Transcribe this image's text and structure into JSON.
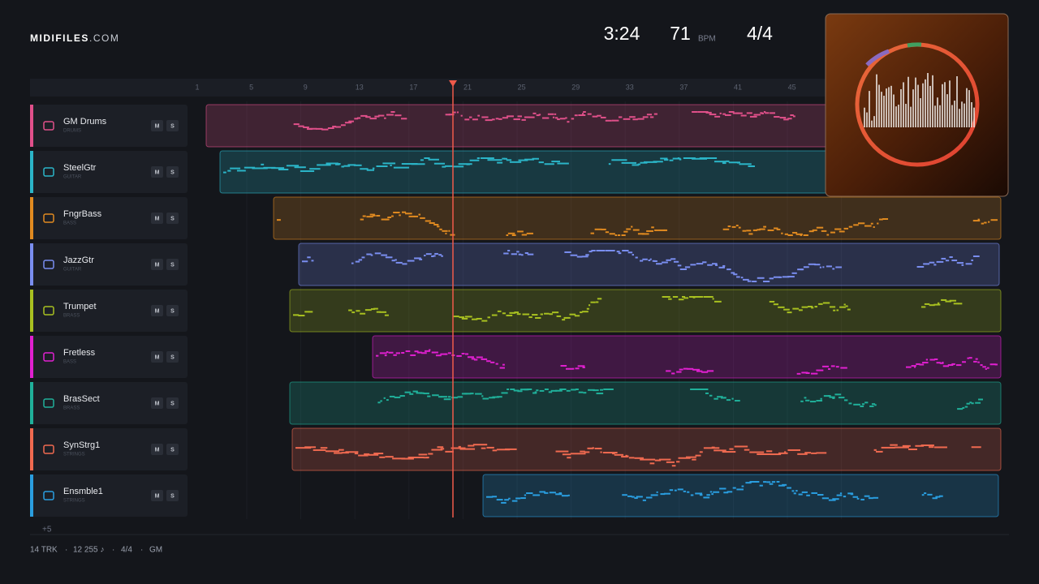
{
  "header": {
    "brand": "MIDIFILES",
    "domain": ".COM",
    "time": "3:24",
    "tempo": "71",
    "tempo_unit": "BPM",
    "meter": "4/4"
  },
  "ruler": [
    "1",
    "5",
    "9",
    "13",
    "17",
    "21",
    "25",
    "29",
    "33",
    "37",
    "41",
    "45"
  ],
  "tracks": [
    {
      "name": "GM Drums",
      "category": "DRUMS",
      "color": "#e0508a",
      "mute": "M",
      "solo": "S"
    },
    {
      "name": "SteelGtr",
      "category": "GUITAR",
      "color": "#2bb5c8",
      "mute": "M",
      "solo": "S"
    },
    {
      "name": "FngrBass",
      "category": "BASS",
      "color": "#e08a20",
      "mute": "M",
      "solo": "S"
    },
    {
      "name": "JazzGtr",
      "category": "GUITAR",
      "color": "#7a8ef0",
      "mute": "M",
      "solo": "S"
    },
    {
      "name": "Trumpet",
      "category": "BRASS",
      "color": "#a8c020",
      "mute": "M",
      "solo": "S"
    },
    {
      "name": "Fretless",
      "category": "BASS",
      "color": "#e020d0",
      "mute": "M",
      "solo": "S"
    },
    {
      "name": "BrasSect",
      "category": "BRASS",
      "color": "#20b09a",
      "mute": "M",
      "solo": "S"
    },
    {
      "name": "SynStrg1",
      "category": "STRINGS",
      "color": "#f06a50",
      "mute": "M",
      "solo": "S"
    },
    {
      "name": "Ensmble1",
      "category": "STRINGS",
      "color": "#2a9ee0",
      "mute": "M",
      "solo": "S"
    }
  ],
  "more_tracks": "+5",
  "footer": {
    "tracks": "14 TRK",
    "separator": "·",
    "notes": "12 255 ♪",
    "meter": "4/4",
    "standard": "GM"
  }
}
